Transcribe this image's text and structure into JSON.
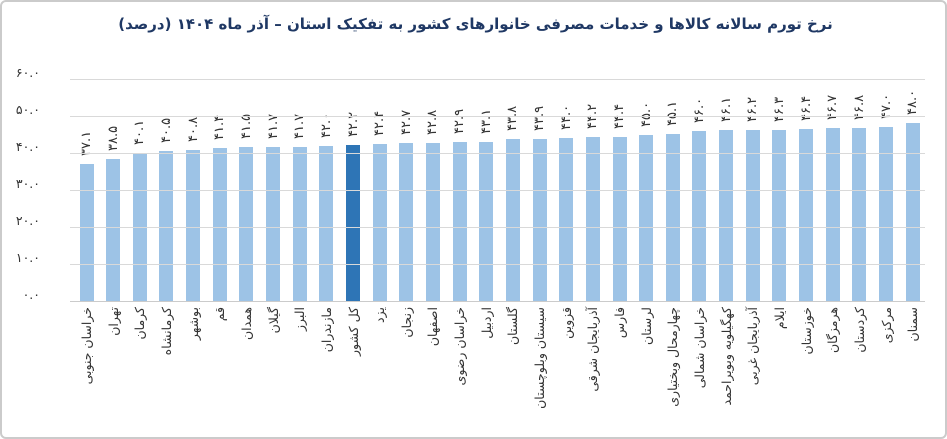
{
  "chart_data": {
    "type": "bar",
    "title": "نرخ تورم سالانه کالاها و خدمات مصرفی خانوارهای کشور به تفکیک استان – آذر ماه ۱۴۰۴ (درصد)",
    "categories": [
      "خراسان جنوبی",
      "تهران",
      "کرمان",
      "کرمانشاه",
      "بوشهر",
      "قم",
      "همدان",
      "گیلان",
      "البرز",
      "مازندران",
      "کل کشور",
      "یزد",
      "زنجان",
      "اصفهان",
      "خراسان رضوی",
      "اردبیل",
      "گلستان",
      "سیستان وبلوچستان",
      "قزوین",
      "آذربایجان شرقی",
      "فارس",
      "لرستان",
      "چهارمحال وبختیاری",
      "خراسان شمالی",
      "کهگیلویه وبویراحمد",
      "آذربایجان غربی",
      "ایلام",
      "خوزستان",
      "هرمزگان",
      "کردستان",
      "مرکزی",
      "سمنان"
    ],
    "values": [
      37.1,
      38.5,
      40.1,
      40.5,
      40.8,
      41.4,
      41.5,
      41.7,
      41.7,
      42.0,
      42.2,
      42.4,
      42.7,
      42.8,
      42.9,
      43.1,
      43.8,
      43.9,
      44.0,
      44.2,
      44.4,
      45.0,
      45.1,
      46.0,
      46.1,
      46.2,
      46.3,
      46.4,
      46.7,
      46.8,
      47.0,
      48.0
    ],
    "value_labels": [
      "۳۷.۱",
      "۳۸.۵",
      "۴۰.۱",
      "۴۰.۵",
      "۴۰.۸",
      "۴۱.۴",
      "۴۱.۵",
      "۴۱.۷",
      "۴۱.۷",
      "۴۲.۰",
      "۴۲.۲",
      "۴۲.۴",
      "۴۲.۷",
      "۴۲.۸",
      "۴۲.۹",
      "۴۳.۱",
      "۴۳.۸",
      "۴۳.۹",
      "۴۴.۰",
      "۴۴.۲",
      "۴۴.۴",
      "۴۵.۰",
      "۴۵.۱",
      "۴۶.۰",
      "۴۶.۱",
      "۴۶.۲",
      "۴۶.۳",
      "۴۶.۴",
      "۴۶.۷",
      "۴۶.۸",
      "۴۷.۰",
      "۴۸.۰"
    ],
    "highlight_category": "کل کشور",
    "highlight_index": 10,
    "y_axis_tick_labels": [
      "۶۰.۰",
      "۵۰.۰",
      "۴۰.۰",
      "۳۰.۰",
      "۲۰.۰",
      "۱۰.۰",
      "۰.۰"
    ],
    "y_ticks": [
      60,
      50,
      40,
      30,
      20,
      10,
      0
    ],
    "ylim": [
      0,
      60
    ],
    "grid": true,
    "xlabel": "",
    "ylabel": "",
    "colors": {
      "bar": "#9DC3E6",
      "highlight_bar": "#2E75B6",
      "title": "#1F3864",
      "gridline": "#D9D9D9",
      "axis_line": "#CBCBCB",
      "text": "#333333",
      "frame_border": "#CBCBCB"
    }
  }
}
